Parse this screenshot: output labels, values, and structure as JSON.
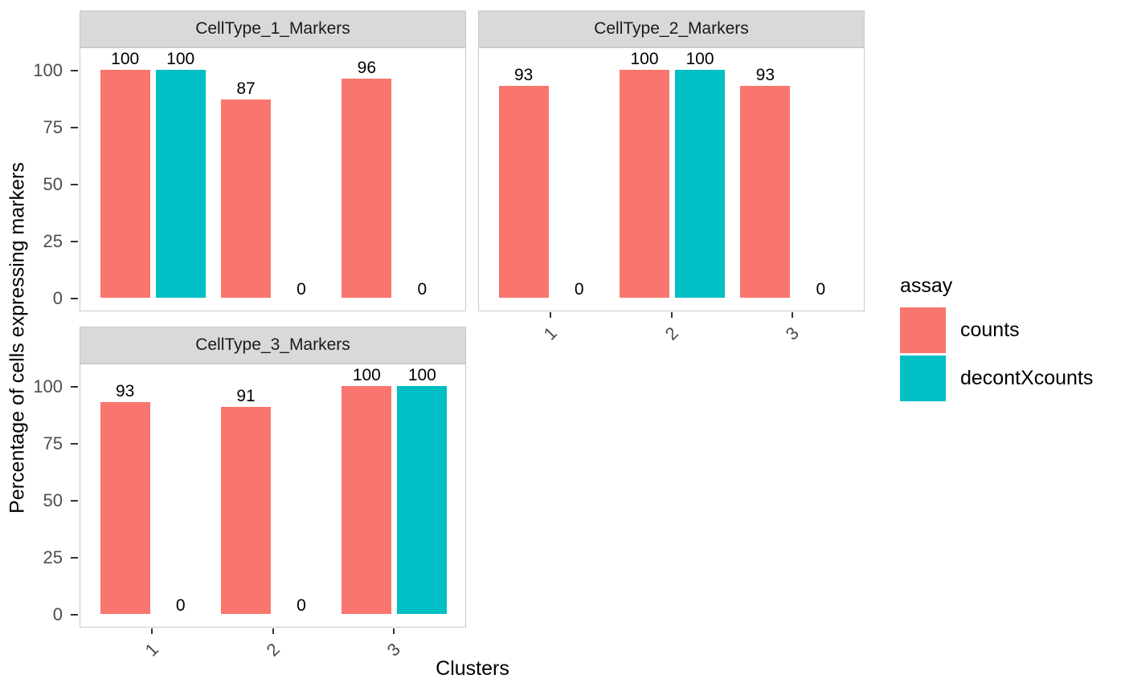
{
  "chart_data": {
    "type": "bar",
    "subtype": "grouped-faceted",
    "xlabel": "Clusters",
    "ylabel": "Percentage of cells expressing markers",
    "categories": [
      "1",
      "2",
      "3"
    ],
    "yticks": [
      0,
      25,
      50,
      75,
      100
    ],
    "ylim": [
      0,
      105
    ],
    "grid": "off",
    "bar_value_labels_shown": true,
    "facets": [
      {
        "title": "CellType_1_Markers",
        "series": [
          {
            "name": "counts",
            "values": [
              100,
              87,
              96
            ]
          },
          {
            "name": "decontXcounts",
            "values": [
              100,
              0,
              0
            ]
          }
        ]
      },
      {
        "title": "CellType_2_Markers",
        "series": [
          {
            "name": "counts",
            "values": [
              93,
              100,
              93
            ]
          },
          {
            "name": "decontXcounts",
            "values": [
              0,
              100,
              0
            ]
          }
        ]
      },
      {
        "title": "CellType_3_Markers",
        "series": [
          {
            "name": "counts",
            "values": [
              93,
              91,
              100
            ]
          },
          {
            "name": "decontXcounts",
            "values": [
              0,
              0,
              100
            ]
          }
        ]
      }
    ],
    "legend": {
      "title": "assay",
      "position": "right",
      "items": [
        {
          "label": "counts",
          "color": "#F8766D"
        },
        {
          "label": "decontXcounts",
          "color": "#00BFC4"
        }
      ]
    },
    "colors": {
      "strip_background": "#D9D9D9",
      "panel_border": "#C9C9C9",
      "tick_label": "#4D4D4D",
      "tick_mark": "#333333",
      "background": "#FFFFFF"
    }
  }
}
